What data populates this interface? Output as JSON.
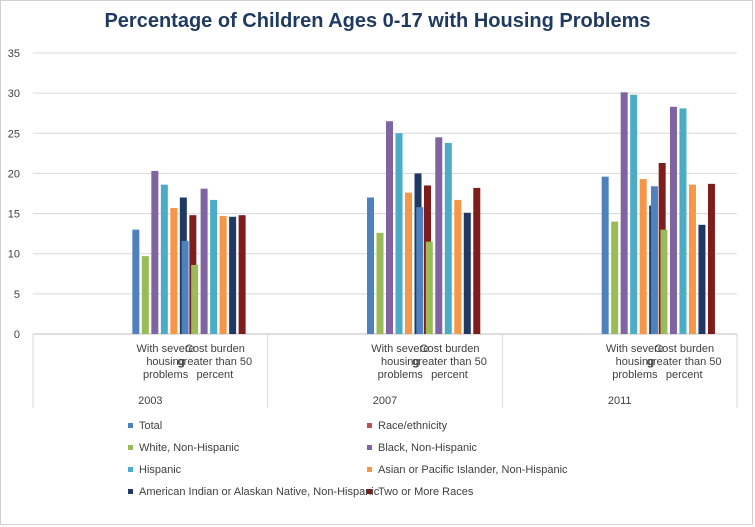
{
  "chart_data": {
    "type": "bar",
    "title": "Percentage of Children Ages 0-17 with Housing Problems",
    "xlabel": "",
    "ylabel": "",
    "ylim": [
      0,
      35
    ],
    "yticks": [
      0,
      5,
      10,
      15,
      20,
      25,
      30,
      35
    ],
    "grid": true,
    "legend_position": "bottom",
    "groups": [
      {
        "label": "2003",
        "categories": [
          {
            "label": [
              "With severe",
              "housing",
              "problems"
            ],
            "values": [
              13.0,
              9.7,
              20.3,
              18.6,
              15.7,
              17.0,
              14.8
            ]
          },
          {
            "label": [
              "Cost burden",
              "greater than 50",
              "percent"
            ],
            "values": [
              11.6,
              8.6,
              18.1,
              16.7,
              14.7,
              14.6,
              14.8
            ]
          }
        ]
      },
      {
        "label": "2007",
        "categories": [
          {
            "label": [
              "With severe",
              "housing",
              "problems"
            ],
            "values": [
              17.0,
              12.6,
              26.5,
              25.0,
              17.6,
              20.0,
              18.5
            ]
          },
          {
            "label": [
              "Cost burden",
              "greater than 50",
              "percent"
            ],
            "values": [
              15.8,
              11.5,
              24.5,
              23.8,
              16.7,
              15.1,
              18.2
            ]
          }
        ]
      },
      {
        "label": "2011",
        "categories": [
          {
            "label": [
              "With severe",
              "housing",
              "problems"
            ],
            "values": [
              19.6,
              14.0,
              30.1,
              29.8,
              19.3,
              16.0,
              21.3
            ]
          },
          {
            "label": [
              "Cost burden",
              "greater than 50",
              "percent"
            ],
            "values": [
              18.4,
              13.0,
              28.3,
              28.1,
              18.6,
              13.6,
              18.7
            ]
          }
        ]
      }
    ],
    "series": [
      {
        "name": "Total",
        "color": "#4f81bd"
      },
      {
        "name": "White, Non-Hispanic",
        "color": "#9bbb59"
      },
      {
        "name": "Black, Non-Hispanic",
        "color": "#8064a2"
      },
      {
        "name": "Hispanic",
        "color": "#4bacc6"
      },
      {
        "name": "Asian or Pacific Islander, Non-Hispanic",
        "color": "#f79646"
      },
      {
        "name": "American Indian or Alaskan Native, Non-Hispanic",
        "color": "#1f3864"
      },
      {
        "name": "Two or More Races",
        "color": "#7f1d1d"
      }
    ],
    "legend": [
      {
        "name": "Total",
        "color": "#4f81bd"
      },
      {
        "name": "Race/ethnicity",
        "color": "#c0504d"
      },
      {
        "name": "White, Non-Hispanic",
        "color": "#9bbb59"
      },
      {
        "name": "Black, Non-Hispanic",
        "color": "#8064a2"
      },
      {
        "name": "Hispanic",
        "color": "#4bacc6"
      },
      {
        "name": "Asian or Pacific Islander, Non-Hispanic",
        "color": "#f79646"
      },
      {
        "name": "American Indian or Alaskan Native, Non-Hispanic",
        "color": "#1f3864"
      },
      {
        "name": "Two or More Races",
        "color": "#7f1d1d"
      }
    ]
  }
}
